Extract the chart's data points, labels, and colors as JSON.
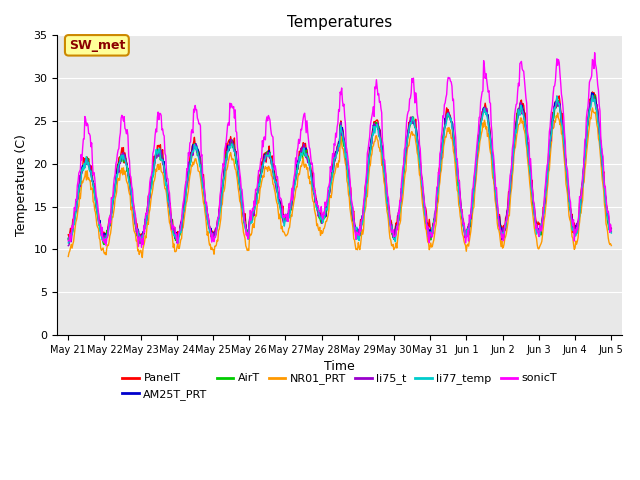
{
  "title": "Temperatures",
  "xlabel": "Time",
  "ylabel": "Temperature (C)",
  "ylim": [
    0,
    35
  ],
  "yticks": [
    0,
    5,
    10,
    15,
    20,
    25,
    30,
    35
  ],
  "series_names": [
    "PanelT",
    "AM25T_PRT",
    "AirT",
    "NR01_PRT",
    "li75_t",
    "li77_temp",
    "sonicT"
  ],
  "series_colors": [
    "#ff0000",
    "#0000cc",
    "#00cc00",
    "#ff9900",
    "#9900cc",
    "#00cccc",
    "#ff00ff"
  ],
  "annotation_text": "SW_met",
  "annotation_bg": "#ffff99",
  "annotation_border": "#cc8800",
  "annotation_text_color": "#8b0000",
  "plot_bg": "#e8e8e8",
  "tick_labels": [
    "May 21",
    "May 22",
    "May 23",
    "May 24",
    "May 25",
    "May 26",
    "May 27",
    "May 28",
    "May 29",
    "May 30",
    "May 31",
    "Jun 1",
    "Jun 2",
    "Jun 3",
    "Jun 4",
    "Jun 5"
  ]
}
